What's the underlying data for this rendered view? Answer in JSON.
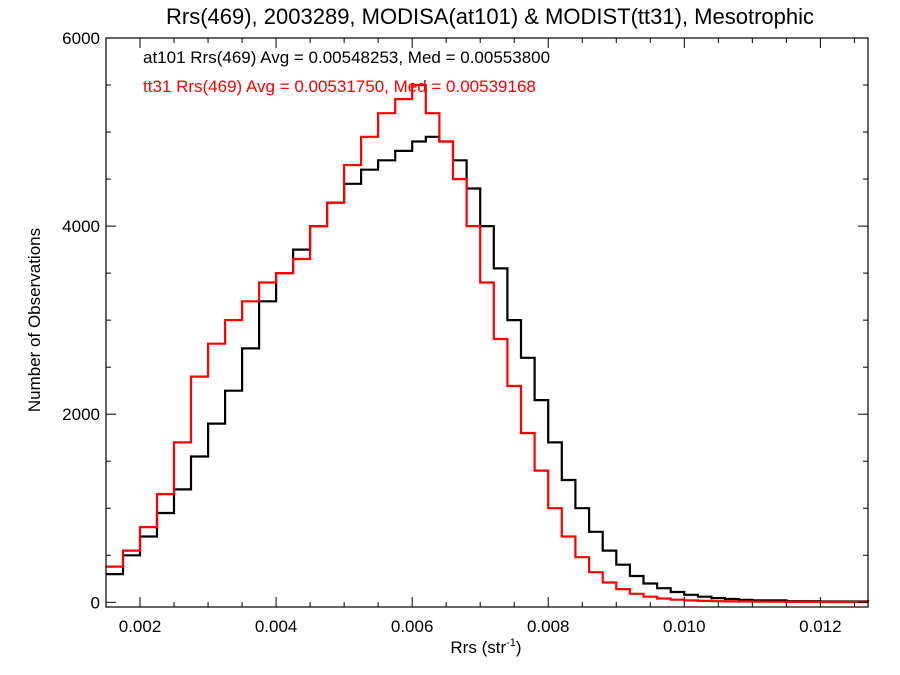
{
  "chart_data": {
    "type": "line",
    "title": "Rrs(469), 2003289, MODISA(at101) & MODIST(tt31), Mesotrophic",
    "xlabel": "Rrs (str",
    "xlabel_sup": "-1",
    "xlabel_end": ")",
    "ylabel": "Number of Observations",
    "xlim": [
      0.0015,
      0.0127
    ],
    "ylim": [
      -50,
      6000
    ],
    "x_ticks": [
      {
        "value": 0.002,
        "label": "0.002"
      },
      {
        "value": 0.004,
        "label": "0.004"
      },
      {
        "value": 0.006,
        "label": "0.006"
      },
      {
        "value": 0.008,
        "label": "0.008"
      },
      {
        "value": 0.01,
        "label": "0.010"
      },
      {
        "value": 0.012,
        "label": "0.012"
      }
    ],
    "y_ticks": [
      {
        "value": 0,
        "label": "0"
      },
      {
        "value": 2000,
        "label": "2000"
      },
      {
        "value": 4000,
        "label": "4000"
      },
      {
        "value": 6000,
        "label": "6000"
      }
    ],
    "annotations": [
      {
        "text": "at101 Rrs(469) Avg = 0.00548253, Med = 0.00553800",
        "color": "#000000"
      },
      {
        "text": "tt31 Rrs(469) Avg = 0.00531750, Med = 0.00539168",
        "color": "#ff0000"
      }
    ],
    "series": [
      {
        "color": "#000000",
        "x": [
          0.0015,
          0.00175,
          0.002,
          0.00225,
          0.0025,
          0.00275,
          0.003,
          0.00325,
          0.0035,
          0.00375,
          0.004,
          0.00425,
          0.0045,
          0.00475,
          0.005,
          0.00525,
          0.0055,
          0.00575,
          0.006,
          0.0062,
          0.0064,
          0.0066,
          0.0068,
          0.007,
          0.0072,
          0.0074,
          0.0076,
          0.0078,
          0.008,
          0.0082,
          0.0084,
          0.0086,
          0.0088,
          0.009,
          0.0092,
          0.0094,
          0.0096,
          0.0098,
          0.01,
          0.0102,
          0.0104,
          0.0106,
          0.0108,
          0.011,
          0.0115,
          0.012,
          0.0127
        ],
        "y": [
          300,
          500,
          700,
          950,
          1200,
          1550,
          1900,
          2250,
          2700,
          3200,
          3500,
          3750,
          4000,
          4250,
          4450,
          4600,
          4700,
          4800,
          4900,
          4950,
          4900,
          4700,
          4400,
          4000,
          3550,
          3000,
          2600,
          2150,
          1700,
          1300,
          1000,
          750,
          550,
          400,
          280,
          200,
          150,
          110,
          80,
          60,
          45,
          35,
          25,
          20,
          12,
          8,
          5
        ]
      },
      {
        "color": "#ff0000",
        "x": [
          0.0015,
          0.00175,
          0.002,
          0.00225,
          0.0025,
          0.00275,
          0.003,
          0.00325,
          0.0035,
          0.00375,
          0.004,
          0.00425,
          0.0045,
          0.00475,
          0.005,
          0.00525,
          0.0055,
          0.00575,
          0.006,
          0.0062,
          0.0064,
          0.0066,
          0.0068,
          0.007,
          0.0072,
          0.0074,
          0.0076,
          0.0078,
          0.008,
          0.0082,
          0.0084,
          0.0086,
          0.0088,
          0.009,
          0.0092,
          0.0094,
          0.0096,
          0.0098,
          0.01,
          0.0102,
          0.0104,
          0.0106,
          0.0108,
          0.011,
          0.0115,
          0.012,
          0.0127
        ],
        "y": [
          380,
          550,
          800,
          1150,
          1700,
          2400,
          2750,
          3000,
          3200,
          3400,
          3500,
          3650,
          4000,
          4250,
          4650,
          4950,
          5200,
          5350,
          5500,
          5200,
          4900,
          4500,
          4000,
          3400,
          2800,
          2300,
          1800,
          1400,
          1000,
          700,
          480,
          320,
          210,
          140,
          90,
          60,
          40,
          28,
          20,
          15,
          12,
          10,
          8,
          6,
          4,
          3,
          2
        ]
      }
    ]
  }
}
